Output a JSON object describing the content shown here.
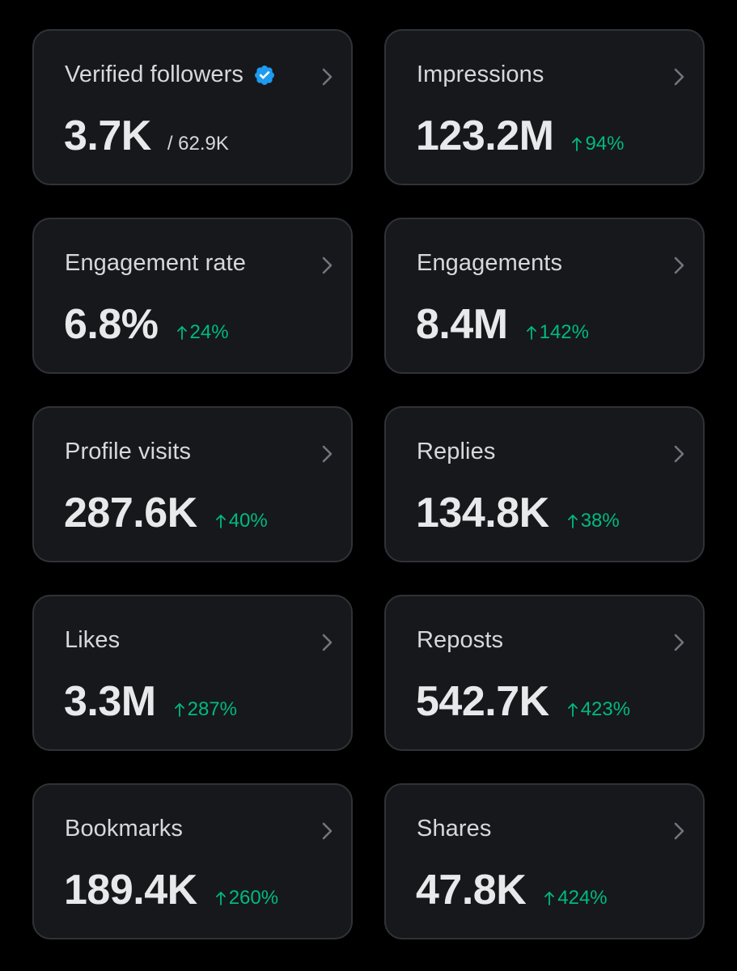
{
  "cards": [
    {
      "title": "Verified followers",
      "value": "3.7K",
      "sub": "/ 62.9K",
      "change": "",
      "verified": true
    },
    {
      "title": "Impressions",
      "value": "123.2M",
      "sub": "",
      "change": "94%"
    },
    {
      "title": "Engagement rate",
      "value": "6.8%",
      "sub": "",
      "change": "24%"
    },
    {
      "title": "Engagements",
      "value": "8.4M",
      "sub": "",
      "change": "142%"
    },
    {
      "title": "Profile visits",
      "value": "287.6K",
      "sub": "",
      "change": "40%"
    },
    {
      "title": "Replies",
      "value": "134.8K",
      "sub": "",
      "change": "38%"
    },
    {
      "title": "Likes",
      "value": "3.3M",
      "sub": "",
      "change": "287%"
    },
    {
      "title": "Reposts",
      "value": "542.7K",
      "sub": "",
      "change": "423%"
    },
    {
      "title": "Bookmarks",
      "value": "189.4K",
      "sub": "",
      "change": "260%"
    },
    {
      "title": "Shares",
      "value": "47.8K",
      "sub": "",
      "change": "424%"
    }
  ],
  "icons": {
    "chevron": "chevron-right-icon",
    "verified": "verified-badge-icon",
    "arrow": "arrow-up-icon"
  },
  "colors": {
    "background": "#000000",
    "card": "#16181c",
    "border": "#2f3336",
    "positive": "#00ba7c",
    "verified": "#1d9bf0"
  }
}
